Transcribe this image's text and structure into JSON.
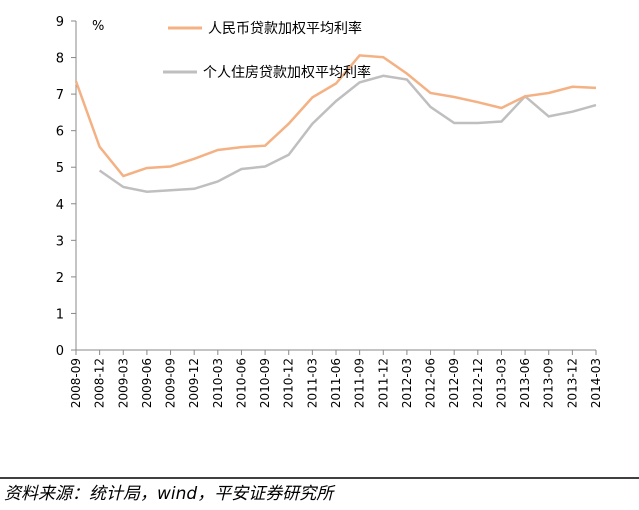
{
  "chart_data": {
    "type": "line",
    "unit": "%",
    "categories": [
      "2008-09",
      "2008-12",
      "2009-03",
      "2009-06",
      "2009-09",
      "2009-12",
      "2010-03",
      "2010-06",
      "2010-09",
      "2010-12",
      "2011-03",
      "2011-06",
      "2011-09",
      "2011-12",
      "2012-03",
      "2012-06",
      "2012-09",
      "2012-12",
      "2013-03",
      "2013-06",
      "2013-09",
      "2013-12",
      "2014-03"
    ],
    "series": [
      {
        "name": "人民币贷款加权平均利率",
        "color": "#f4b183",
        "values": [
          7.35,
          5.56,
          4.76,
          4.98,
          5.02,
          5.23,
          5.47,
          5.55,
          5.59,
          6.19,
          6.91,
          7.29,
          8.06,
          8.01,
          7.56,
          7.03,
          6.92,
          6.78,
          6.62,
          6.94,
          7.03,
          7.2,
          7.17
        ]
      },
      {
        "name": "个人住房贷款加权平均利率",
        "color": "#bfbfbf",
        "values": [
          null,
          4.91,
          4.46,
          4.33,
          4.37,
          4.41,
          4.61,
          4.95,
          5.02,
          5.34,
          6.19,
          6.81,
          7.32,
          7.5,
          7.4,
          6.65,
          6.21,
          6.21,
          6.25,
          6.94,
          6.39,
          6.52,
          6.7
        ]
      }
    ],
    "ylim": [
      0,
      9
    ],
    "yticks": [
      0,
      1,
      2,
      3,
      4,
      5,
      6,
      7,
      8,
      9
    ],
    "source": "资料来源：统计局，wind，平安证券研究所"
  }
}
